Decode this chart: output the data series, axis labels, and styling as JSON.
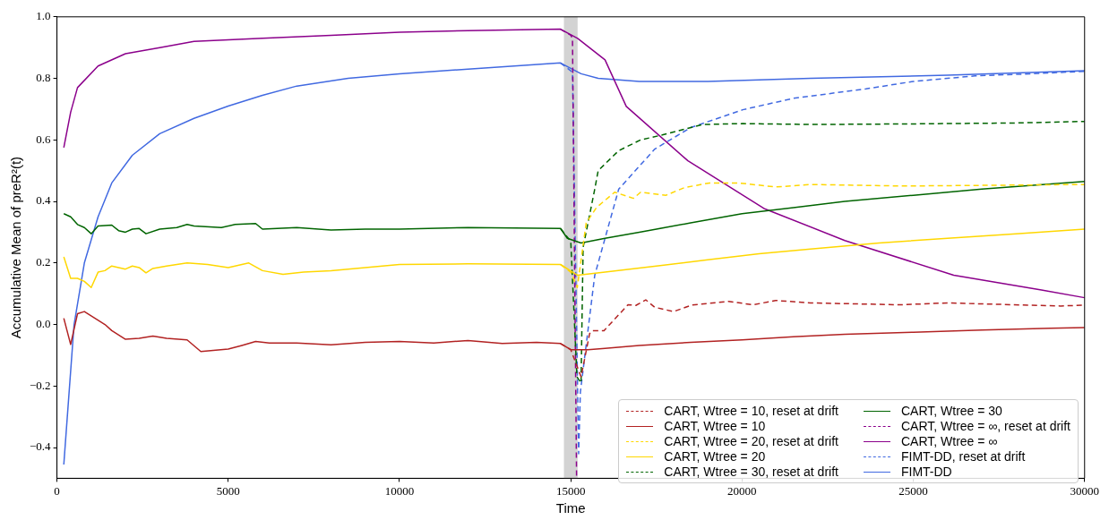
{
  "chart_data": {
    "type": "line",
    "xlabel": "Time",
    "ylabel": "Accumulative Mean of preR²(t)",
    "xlim": [
      0,
      30000
    ],
    "ylim": [
      -0.5,
      1.0
    ],
    "xticks": [
      0,
      5000,
      10000,
      15000,
      20000,
      25000,
      30000
    ],
    "yticks": [
      {
        "value": -0.4,
        "label": "−0.4"
      },
      {
        "value": -0.2,
        "label": "−0.2"
      },
      {
        "value": 0,
        "label": "0.0"
      },
      {
        "value": 0.2,
        "label": "0.2"
      },
      {
        "value": 0.4,
        "label": "0.4"
      },
      {
        "value": 0.6,
        "label": "0.6"
      },
      {
        "value": 0.8,
        "label": "0.8"
      },
      {
        "value": 1.0,
        "label": "1.0"
      }
    ],
    "grid": false,
    "legend": "bottom right",
    "marker": "none",
    "bands": [
      {
        "axis": "x",
        "from": 14800,
        "to": 15200,
        "color": "#d3d3d3"
      }
    ],
    "series": [
      {
        "name": "CART, Wtree = 10, reset at drift",
        "color": "#b22222",
        "line_style": "dashed",
        "x": [
          14700,
          15000,
          15300,
          15550,
          15630,
          15970,
          16670,
          16900,
          17190,
          17450,
          18000,
          18530,
          19600,
          20330,
          20980,
          22000,
          24600,
          26000,
          29300,
          30000
        ],
        "values": [
          -0.062,
          -0.082,
          -0.17,
          -0.03,
          -0.02,
          -0.02,
          0.064,
          0.062,
          0.08,
          0.056,
          0.042,
          0.063,
          0.075,
          0.064,
          0.078,
          0.07,
          0.064,
          0.07,
          0.06,
          0.063
        ]
      },
      {
        "name": "CART, Wtree = 10",
        "color": "#b22222",
        "line_style": "solid",
        "x": [
          200,
          400,
          600,
          800,
          1400,
          1600,
          2000,
          2400,
          2800,
          3200,
          3800,
          4200,
          5000,
          5400,
          5800,
          6200,
          7000,
          8000,
          9000,
          10000,
          11000,
          12000,
          13000,
          14000,
          14700,
          15000,
          15500,
          16000,
          17000,
          18500,
          20000,
          21500,
          23000,
          25000,
          27000,
          29000,
          30000
        ],
        "values": [
          0.02,
          -0.065,
          0.035,
          0.042,
          0.0,
          -0.02,
          -0.048,
          -0.045,
          -0.038,
          -0.045,
          -0.05,
          -0.088,
          -0.08,
          -0.068,
          -0.055,
          -0.06,
          -0.06,
          -0.066,
          -0.058,
          -0.055,
          -0.06,
          -0.052,
          -0.062,
          -0.058,
          -0.062,
          -0.082,
          -0.082,
          -0.078,
          -0.068,
          -0.058,
          -0.05,
          -0.04,
          -0.032,
          -0.025,
          -0.018,
          -0.012,
          -0.01
        ]
      },
      {
        "name": "CART, Wtree = 20, reset at drift",
        "color": "#ffd700",
        "line_style": "dashed",
        "x": [
          14700,
          15000,
          15190,
          15450,
          15750,
          16280,
          16830,
          17040,
          17780,
          18320,
          19050,
          19900,
          20980,
          22030,
          24700,
          30000
        ],
        "values": [
          0.195,
          0.17,
          0.12,
          0.33,
          0.38,
          0.43,
          0.41,
          0.43,
          0.42,
          0.445,
          0.46,
          0.46,
          0.447,
          0.455,
          0.45,
          0.455
        ]
      },
      {
        "name": "CART, Wtree = 20",
        "color": "#ffd700",
        "line_style": "solid",
        "x": [
          200,
          400,
          600,
          800,
          1000,
          1200,
          1400,
          1600,
          2000,
          2200,
          2400,
          2600,
          2800,
          3200,
          3800,
          4400,
          5000,
          5600,
          6000,
          6600,
          7200,
          8000,
          9000,
          10000,
          12000,
          14700,
          15200,
          16000,
          17500,
          19000,
          20500,
          22000,
          24000,
          26000,
          28000,
          30000
        ],
        "values": [
          0.22,
          0.15,
          0.15,
          0.14,
          0.12,
          0.17,
          0.175,
          0.19,
          0.18,
          0.19,
          0.185,
          0.168,
          0.182,
          0.19,
          0.2,
          0.195,
          0.185,
          0.2,
          0.175,
          0.163,
          0.17,
          0.175,
          0.185,
          0.195,
          0.197,
          0.195,
          0.16,
          0.17,
          0.19,
          0.21,
          0.23,
          0.245,
          0.265,
          0.28,
          0.295,
          0.31
        ]
      },
      {
        "name": "CART, Wtree = 30, reset at drift",
        "color": "#006400",
        "line_style": "dashed",
        "x": [
          14700,
          15000,
          15180,
          15300,
          15360,
          15700,
          15800,
          16400,
          17040,
          17670,
          18840,
          20020,
          22000,
          25000,
          28000,
          30000
        ],
        "values": [
          0.312,
          0.27,
          -0.17,
          -0.19,
          0.25,
          0.44,
          0.5,
          0.565,
          0.6,
          0.616,
          0.65,
          0.653,
          0.65,
          0.652,
          0.655,
          0.66
        ]
      },
      {
        "name": "CART, Wtree = 30",
        "color": "#006400",
        "line_style": "solid",
        "x": [
          200,
          400,
          600,
          800,
          1000,
          1200,
          1600,
          1800,
          2000,
          2200,
          2400,
          2600,
          3000,
          3500,
          3800,
          4000,
          4800,
          5200,
          5800,
          6000,
          7000,
          8000,
          9000,
          10000,
          12000,
          14700,
          14900,
          15300,
          16000,
          17000,
          18500,
          20000,
          21500,
          23000,
          25000,
          27000,
          30000
        ],
        "values": [
          0.36,
          0.35,
          0.325,
          0.315,
          0.295,
          0.32,
          0.323,
          0.305,
          0.3,
          0.31,
          0.312,
          0.295,
          0.31,
          0.315,
          0.325,
          0.32,
          0.315,
          0.325,
          0.328,
          0.31,
          0.315,
          0.307,
          0.31,
          0.31,
          0.315,
          0.312,
          0.28,
          0.265,
          0.28,
          0.3,
          0.33,
          0.36,
          0.38,
          0.4,
          0.42,
          0.44,
          0.465
        ]
      },
      {
        "name": "CART, Wtree = ∞, reset at drift",
        "color": "#8b008b",
        "line_style": "dashed",
        "x": [
          14700,
          15000,
          15050,
          15170
        ],
        "values": [
          0.96,
          0.94,
          0.93,
          -0.5
        ]
      },
      {
        "name": "CART, Wtree = ∞",
        "color": "#8b008b",
        "line_style": "solid",
        "x": [
          200,
          400,
          600,
          1200,
          2000,
          3000,
          4000,
          5000,
          6000,
          8000,
          10000,
          12000,
          14700,
          15200,
          16000,
          16620,
          18420,
          20640,
          23000,
          26180,
          28740,
          30000
        ],
        "values": [
          0.575,
          0.69,
          0.77,
          0.84,
          0.88,
          0.9,
          0.92,
          0.925,
          0.93,
          0.94,
          0.95,
          0.955,
          0.96,
          0.93,
          0.86,
          0.709,
          0.532,
          0.377,
          0.273,
          0.16,
          0.112,
          0.087
        ]
      },
      {
        "name": "FIMT-DD, reset at drift",
        "color": "#4169e1",
        "line_style": "dashed",
        "x": [
          14700,
          15050,
          15230,
          15280,
          15700,
          16400,
          17450,
          18500,
          20020,
          21500,
          23620,
          25000,
          26800,
          28500,
          30000
        ],
        "values": [
          0.85,
          0.82,
          -0.42,
          -0.22,
          0.16,
          0.44,
          0.57,
          0.64,
          0.698,
          0.735,
          0.766,
          0.79,
          0.808,
          0.815,
          0.823
        ]
      },
      {
        "name": "FIMT-DD",
        "color": "#4169e1",
        "line_style": "solid",
        "x": [
          200,
          500,
          800,
          1200,
          1600,
          2200,
          3000,
          4000,
          5000,
          6000,
          7000,
          8500,
          10000,
          12000,
          14700,
          15300,
          15800,
          17000,
          19000,
          22000,
          26000,
          30000
        ],
        "values": [
          -0.455,
          0.0,
          0.2,
          0.35,
          0.46,
          0.55,
          0.62,
          0.67,
          0.71,
          0.745,
          0.775,
          0.8,
          0.815,
          0.83,
          0.85,
          0.815,
          0.8,
          0.79,
          0.79,
          0.8,
          0.81,
          0.825
        ]
      }
    ]
  }
}
